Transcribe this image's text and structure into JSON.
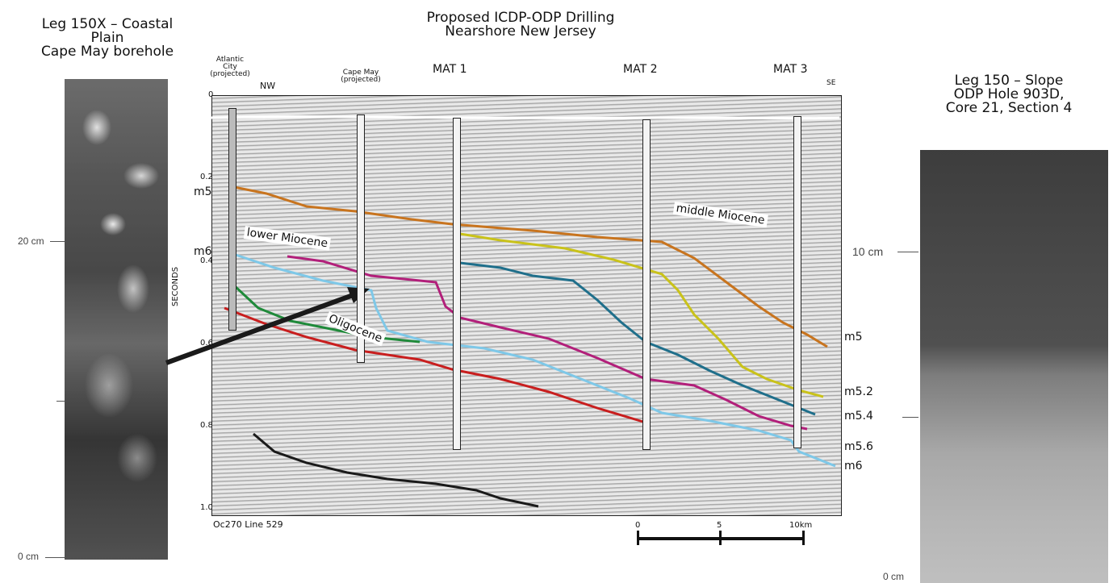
{
  "main_title": [
    "Proposed ICDP-ODP Drilling",
    "Nearshore New Jersey"
  ],
  "left_panel": {
    "title": [
      "Leg 150X – Coastal",
      "Plain",
      "Cape May borehole"
    ],
    "scale_top": "20 cm",
    "scale_bottom": "0 cm"
  },
  "right_panel": {
    "title": [
      "Leg 150 – Slope",
      "ODP Hole 903D,",
      "Core 21, Section 4"
    ],
    "scale_top": "10 cm",
    "scale_bottom": "0 cm"
  },
  "boreholes": [
    {
      "name": "Atlantic City (projected)",
      "lines": [
        "Atlantic",
        "City",
        "(projected)"
      ]
    },
    {
      "name": "Cape May (projected)",
      "lines": [
        "Cape May",
        "(projected)"
      ]
    },
    {
      "name": "MAT 1"
    },
    {
      "name": "MAT 2"
    },
    {
      "name": "MAT 3"
    }
  ],
  "direction": {
    "left": "NW",
    "right": "SE"
  },
  "y_axis": {
    "label": "SECONDS",
    "ticks": [
      "0",
      "0.2",
      "0.4",
      "0.6",
      "0.8",
      "1.0"
    ]
  },
  "left_horizon_labels": [
    "m5",
    "m6"
  ],
  "right_horizon_labels": [
    "m5",
    "m5.2",
    "m5.4",
    "m5.6",
    "m6"
  ],
  "unit_labels": {
    "lower": "lower Miocene",
    "middle": "middle Miocene",
    "oligo": "Oligocene"
  },
  "line_name": "Oc270 Line 529",
  "scale_bar": {
    "ticks": [
      "0",
      "5",
      "10km"
    ]
  },
  "horizon_colors": {
    "m5": "#c8741e",
    "m5_2": "#c9c21a",
    "m5_4": "#1f6f8b",
    "m5_6": "#b21f7a",
    "m6": "#7ec8e8",
    "green": "#1f8a3a",
    "red": "#c81e1e",
    "black": "#1a1a1a"
  }
}
